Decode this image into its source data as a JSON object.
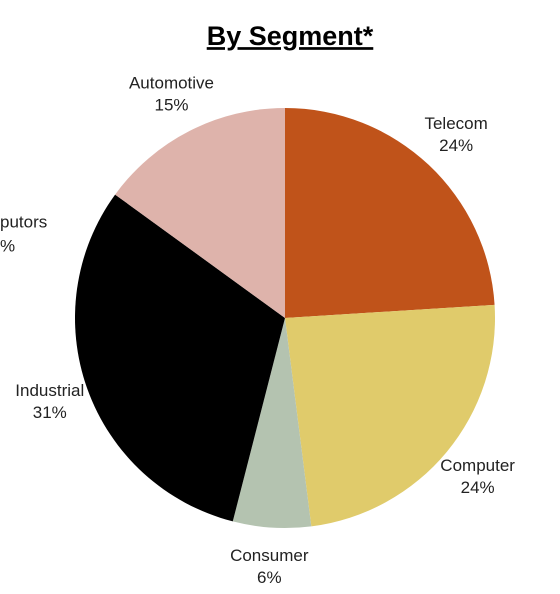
{
  "chart_data": {
    "type": "pie",
    "title": "By Segment*",
    "categories": [
      "Telecom",
      "Computer",
      "Consumer",
      "Industrial",
      "Automotive"
    ],
    "values": [
      24,
      24,
      6,
      31,
      15
    ],
    "value_labels": [
      "24%",
      "24%",
      "6%",
      "31%",
      "15%"
    ],
    "colors": [
      "#c0531a",
      "#e0cb6b",
      "#b4c3b0",
      "#000000",
      "#deb3ab"
    ],
    "annotations": [
      "putors",
      "%"
    ]
  }
}
